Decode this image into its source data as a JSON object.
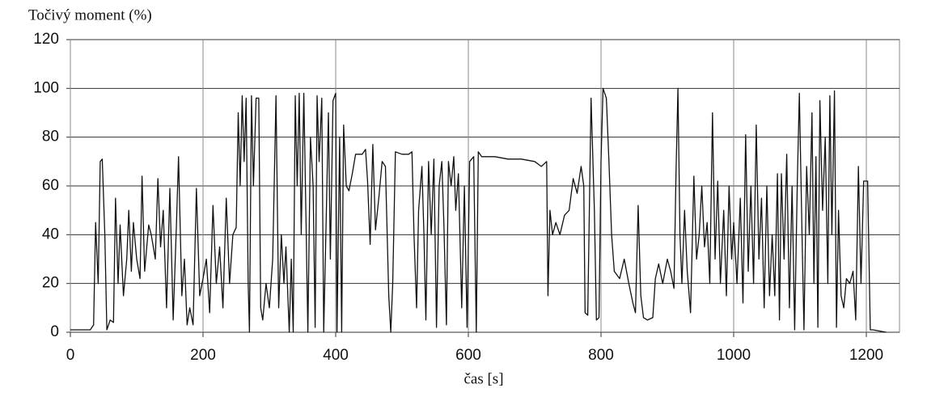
{
  "chart_data": {
    "type": "line",
    "title": "Točivý moment (%)",
    "x_label": "čas [s]",
    "x": [
      0,
      30,
      35,
      38,
      42,
      45,
      48,
      52,
      55,
      60,
      65,
      68,
      72,
      75,
      80,
      85,
      88,
      92,
      95,
      100,
      105,
      108,
      112,
      118,
      122,
      128,
      132,
      136,
      140,
      145,
      150,
      155,
      160,
      163,
      168,
      172,
      176,
      180,
      185,
      190,
      195,
      200,
      205,
      210,
      215,
      220,
      225,
      230,
      235,
      240,
      245,
      250,
      253,
      256,
      259,
      262,
      265,
      268,
      270,
      273,
      276,
      280,
      284,
      287,
      290,
      295,
      300,
      305,
      310,
      314,
      318,
      322,
      325,
      330,
      333,
      336,
      339,
      342,
      345,
      348,
      352,
      355,
      358,
      362,
      366,
      369,
      372,
      375,
      379,
      382,
      386,
      389,
      392,
      396,
      400,
      402,
      406,
      409,
      412,
      416,
      420,
      425,
      430,
      440,
      445,
      448,
      452,
      456,
      460,
      465,
      470,
      475,
      480,
      483,
      486,
      490,
      500,
      510,
      515,
      518,
      522,
      525,
      530,
      533,
      536,
      540,
      544,
      548,
      552,
      556,
      560,
      563,
      567,
      570,
      574,
      578,
      581,
      585,
      590,
      594,
      598,
      602,
      608,
      612,
      615,
      620,
      640,
      660,
      680,
      700,
      710,
      718,
      720,
      723,
      727,
      732,
      738,
      745,
      752,
      758,
      764,
      770,
      774,
      776,
      780,
      785,
      790,
      793,
      797,
      800,
      803,
      808,
      812,
      816,
      820,
      828,
      835,
      842,
      848,
      852,
      856,
      860,
      864,
      870,
      878,
      882,
      887,
      893,
      900,
      905,
      910,
      913,
      916,
      919,
      922,
      926,
      930,
      935,
      940,
      944,
      948,
      952,
      956,
      960,
      964,
      968,
      972,
      976,
      980,
      985,
      989,
      993,
      997,
      1000,
      1005,
      1010,
      1014,
      1018,
      1022,
      1026,
      1030,
      1034,
      1038,
      1042,
      1046,
      1050,
      1054,
      1058,
      1062,
      1066,
      1069,
      1072,
      1076,
      1080,
      1084,
      1088,
      1092,
      1096,
      1099,
      1103,
      1106,
      1110,
      1114,
      1118,
      1121,
      1124,
      1127,
      1130,
      1134,
      1138,
      1142,
      1145,
      1148,
      1152,
      1155,
      1158,
      1162,
      1166,
      1170,
      1175,
      1180,
      1184,
      1188,
      1192,
      1196,
      1202,
      1206,
      1210,
      1230
    ],
    "values": [
      1,
      1,
      3,
      45,
      20,
      70,
      71,
      40,
      1,
      5,
      4,
      55,
      20,
      44,
      15,
      30,
      50,
      25,
      45,
      30,
      22,
      64,
      25,
      44,
      40,
      30,
      63,
      35,
      50,
      10,
      59,
      5,
      45,
      72,
      15,
      30,
      3,
      10,
      3,
      59,
      15,
      22,
      30,
      8,
      52,
      20,
      35,
      10,
      55,
      20,
      40,
      43,
      90,
      60,
      97,
      70,
      96,
      20,
      0,
      97,
      60,
      96,
      96,
      10,
      5,
      20,
      10,
      30,
      97,
      10,
      40,
      20,
      35,
      0,
      30,
      0,
      97,
      60,
      98,
      40,
      98,
      50,
      0,
      80,
      60,
      2,
      97,
      70,
      96,
      0,
      50,
      90,
      30,
      95,
      98,
      0,
      80,
      0,
      85,
      60,
      58,
      65,
      73,
      73,
      75,
      62,
      36,
      77,
      42,
      55,
      70,
      68,
      15,
      0,
      20,
      74,
      73,
      73,
      74,
      40,
      10,
      50,
      68,
      40,
      5,
      70,
      40,
      71,
      2,
      60,
      70,
      45,
      3,
      70,
      60,
      72,
      50,
      65,
      10,
      60,
      2,
      70,
      72,
      0,
      74,
      72,
      72,
      71,
      71,
      70,
      68,
      70,
      15,
      50,
      40,
      45,
      40,
      48,
      50,
      63,
      57,
      68,
      60,
      8,
      7,
      96,
      50,
      5,
      6,
      70,
      100,
      96,
      70,
      40,
      25,
      22,
      30,
      20,
      12,
      8,
      52,
      15,
      6,
      5,
      6,
      22,
      28,
      20,
      30,
      25,
      18,
      65,
      100,
      40,
      20,
      50,
      25,
      8,
      64,
      30,
      40,
      60,
      35,
      45,
      20,
      90,
      30,
      62,
      20,
      50,
      15,
      60,
      30,
      45,
      20,
      55,
      12,
      81,
      25,
      60,
      20,
      85,
      30,
      55,
      10,
      60,
      15,
      40,
      15,
      65,
      5,
      65,
      30,
      73,
      10,
      60,
      1,
      62,
      98,
      40,
      1,
      68,
      40,
      90,
      20,
      72,
      2,
      95,
      50,
      80,
      20,
      97,
      40,
      99,
      2,
      50,
      15,
      10,
      22,
      20,
      25,
      5,
      68,
      20,
      62,
      62,
      1,
      1,
      0
    ],
    "color": "#111111",
    "xlim": [
      0,
      1250
    ],
    "xticks": [
      0,
      200,
      400,
      600,
      800,
      1000,
      1200
    ],
    "ylim": [
      0,
      120
    ],
    "yticks": [
      0,
      20,
      40,
      60,
      80,
      100,
      120
    ],
    "grid": true
  }
}
